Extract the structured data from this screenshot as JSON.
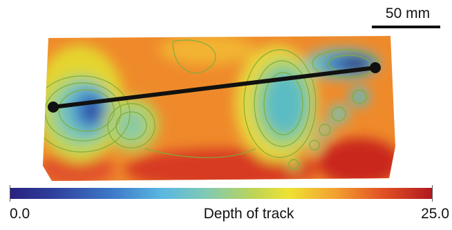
{
  "scale_bar": {
    "label": "50 mm"
  },
  "colorbar": {
    "min_label": "0.0",
    "max_label": "25.0",
    "title": "Depth of track",
    "colors": [
      "#28217f",
      "#3d78c8",
      "#59b8e0",
      "#bed554",
      "#efe234",
      "#f2a030",
      "#e25225",
      "#b1181f"
    ]
  },
  "map": {
    "contour_color": "#7fae3a",
    "measurement_line_color": "#111111"
  }
}
